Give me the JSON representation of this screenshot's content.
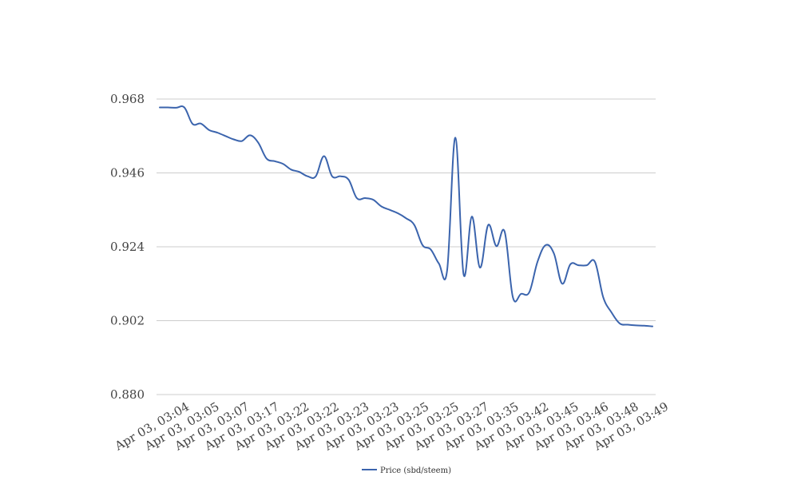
{
  "chart_data": {
    "type": "line",
    "title": "",
    "xlabel": "",
    "ylabel": "",
    "ylim": [
      0.88,
      0.975
    ],
    "yticks": [
      "0.880",
      "0.902",
      "0.924",
      "0.946",
      "0.968"
    ],
    "xtick_labels": [
      "Apr 03, 03:04",
      "Apr 03, 03:05",
      "Apr 03, 03:07",
      "Apr 03, 03:17",
      "Apr 03, 03:22",
      "Apr 03, 03:22",
      "Apr 03, 03:23",
      "Apr 03, 03:23",
      "Apr 03, 03:25",
      "Apr 03, 03:25",
      "Apr 03, 03:27",
      "Apr 03, 03:35",
      "Apr 03, 03:42",
      "Apr 03, 03:45",
      "Apr 03, 03:46",
      "Apr 03, 03:48",
      "Apr 03, 03:49"
    ],
    "grid": true,
    "legend_position": "bottom-center",
    "series": [
      {
        "name": "Price (sbd/steem)",
        "color": "#3b64ad",
        "values": [
          0.9655,
          0.9655,
          0.9654,
          0.9655,
          0.9606,
          0.9607,
          0.9588,
          0.958,
          0.957,
          0.956,
          0.9555,
          0.9572,
          0.955,
          0.9503,
          0.9495,
          0.9487,
          0.947,
          0.9463,
          0.945,
          0.945,
          0.951,
          0.945,
          0.945,
          0.944,
          0.9385,
          0.9385,
          0.938,
          0.936,
          0.935,
          0.934,
          0.9325,
          0.9305,
          0.9245,
          0.9232,
          0.919,
          0.917,
          0.9565,
          0.9158,
          0.933,
          0.9178,
          0.9305,
          0.9242,
          0.9285,
          0.909,
          0.91,
          0.9105,
          0.9195,
          0.9245,
          0.922,
          0.913,
          0.9188,
          0.9185,
          0.9185,
          0.9195,
          0.909,
          0.9045,
          0.9012,
          0.9008,
          0.9006,
          0.9005,
          0.9003
        ]
      }
    ]
  }
}
